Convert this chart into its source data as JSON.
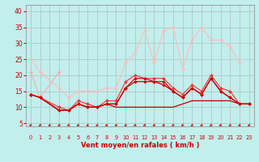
{
  "xlabel": "Vent moyen/en rafales ( km/h )",
  "bg_color": "#c2eeec",
  "grid_color": "#b0c8c8",
  "text_color": "#cc0000",
  "xlim": [
    -0.5,
    23.5
  ],
  "ylim": [
    4,
    42
  ],
  "yticks": [
    5,
    10,
    15,
    20,
    25,
    30,
    35,
    40
  ],
  "xticks": [
    0,
    1,
    2,
    3,
    4,
    5,
    6,
    7,
    8,
    9,
    10,
    11,
    12,
    13,
    14,
    15,
    16,
    17,
    18,
    19,
    20,
    21,
    22,
    23
  ],
  "series": [
    {
      "x": [
        0,
        1,
        3
      ],
      "y": [
        21,
        13,
        21
      ],
      "color": "#ffaaaa",
      "lw": 0.8,
      "marker": "D",
      "ms": 2.0
    },
    {
      "x": [
        0,
        1,
        3,
        4,
        5,
        6,
        7,
        8,
        9,
        10,
        11,
        12,
        13,
        14,
        15,
        16,
        17,
        18,
        19,
        20,
        21,
        22
      ],
      "y": [
        25,
        21,
        16,
        13,
        15,
        15,
        15,
        16,
        16,
        24,
        27,
        34,
        24,
        34,
        35,
        22,
        31,
        35,
        31,
        31,
        29,
        24
      ],
      "color": "#ffbbbb",
      "lw": 0.8,
      "marker": "D",
      "ms": 2.0
    },
    {
      "x": [
        0,
        1,
        3,
        4,
        5,
        6,
        7,
        8,
        9,
        10,
        11,
        12,
        13,
        14,
        15,
        16,
        17,
        18,
        19,
        20,
        21,
        22,
        23
      ],
      "y": [
        14,
        13,
        10,
        9,
        12,
        11,
        10,
        12,
        12,
        18,
        20,
        19,
        19,
        19,
        16,
        14,
        17,
        15,
        20,
        16,
        15,
        11,
        11
      ],
      "color": "#ee3333",
      "lw": 0.8,
      "marker": "D",
      "ms": 2.0
    },
    {
      "x": [
        0,
        1,
        3,
        4,
        5,
        6,
        7,
        8,
        9,
        10,
        11,
        12,
        13,
        14,
        15,
        16,
        17,
        18,
        19,
        20,
        21,
        22,
        23
      ],
      "y": [
        14,
        13,
        9,
        9,
        11,
        10,
        10,
        11,
        11,
        16,
        19,
        19,
        18,
        18,
        15,
        13,
        16,
        14,
        19,
        15,
        13,
        11,
        11
      ],
      "color": "#dd0000",
      "lw": 0.9,
      "marker": "D",
      "ms": 2.0
    },
    {
      "x": [
        0,
        1,
        3,
        4,
        5,
        6,
        7,
        8,
        9,
        10,
        11,
        12,
        13,
        14,
        15,
        16,
        17,
        18,
        19,
        20,
        21,
        22,
        23
      ],
      "y": [
        14,
        13,
        9,
        9,
        11,
        10,
        10,
        11,
        11,
        16,
        18,
        18,
        18,
        17,
        15,
        13,
        16,
        14,
        19,
        15,
        13,
        11,
        11
      ],
      "color": "#cc0000",
      "lw": 0.9,
      "marker": "D",
      "ms": 1.8
    },
    {
      "x": [
        0,
        1,
        3,
        4,
        5,
        6,
        7,
        8,
        9,
        10,
        11,
        12,
        13,
        14,
        15,
        16,
        17,
        18,
        19,
        20,
        21,
        22,
        23
      ],
      "y": [
        14,
        13,
        9,
        9,
        11,
        10,
        10,
        11,
        10,
        10,
        10,
        10,
        10,
        10,
        10,
        11,
        12,
        12,
        12,
        12,
        12,
        11,
        11
      ],
      "color": "#bb0000",
      "lw": 0.9,
      "marker": null,
      "ms": 0
    }
  ],
  "arrow_color": "#cc0000"
}
